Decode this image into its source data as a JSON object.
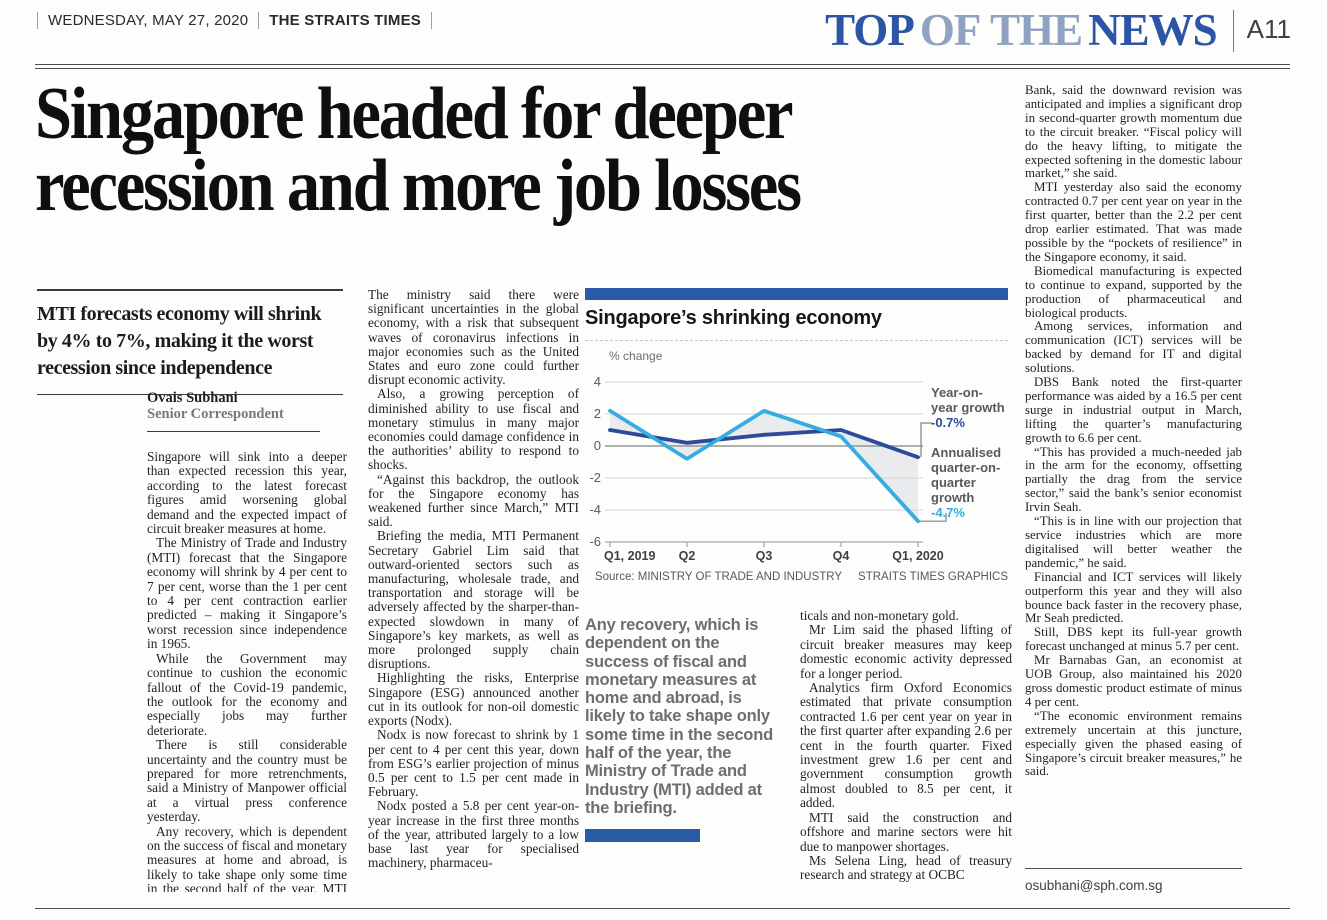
{
  "masthead": {
    "date": "WEDNESDAY, MAY 27, 2020",
    "paper": "THE STRAITS TIMES",
    "section_top": "TOP",
    "section_of_the": "OF THE",
    "section_news": "NEWS",
    "page": "A11"
  },
  "headline": "Singapore headed for deeper recession and more job losses",
  "standfirst": "MTI forecasts economy will shrink by 4% to 7%, making it the worst recession since independence",
  "byline": {
    "name": "Ovais Subhani",
    "role": "Senior Correspondent"
  },
  "article": {
    "col1": [
      "Singapore will sink into a deeper than expected recession this year, according to the latest forecast figures amid worsening global demand and the expected impact of circuit breaker measures at home.",
      "The Ministry of Trade and Industry (MTI) forecast that the Singapore economy will shrink by 4 per cent to 7 per cent, worse than the 1 per cent to 4 per cent contraction earlier predicted – making it Singapore’s worst recession since independence in 1965.",
      "While the Government may continue to cushion the economic fallout of the Covid-19 pandemic, the outlook for the economy and especially jobs may further deteriorate.",
      "There is still considerable uncertainty and the country must be prepared for more retrenchments, said a Ministry of Manpower official at a virtual press conference yesterday.",
      "Any recovery, which is dependent on the success of fiscal and monetary measures at home and abroad, is likely to take shape only some time in the second half of the year, MTI added at the briefing."
    ],
    "col2": [
      "The ministry said there were significant uncertainties in the global economy, with a risk that subsequent waves of coronavirus infections in major economies such as the United States and euro zone could further disrupt economic activity.",
      "Also, a growing perception of diminished ability to use fiscal and monetary stimulus in many major economies could damage confidence in the authorities’ ability to respond to shocks.",
      "“Against this backdrop, the outlook for the Singapore economy has weakened further since March,” MTI said.",
      "Briefing the media, MTI Permanent Secretary Gabriel Lim said that outward-oriented sectors such as manufacturing, wholesale trade, and transportation and storage will be adversely affected by the sharper-than-expected slowdown in many of Singapore’s key markets, as well as more prolonged supply chain disruptions.",
      "Highlighting the risks, Enterprise Singapore (ESG) announced another cut in its outlook for non-oil domestic exports (Nodx).",
      "Nodx is now forecast to shrink by 1 per cent to 4 per cent this year, down from ESG’s earlier projection of minus 0.5 per cent to 1.5 per cent made in February.",
      "Nodx posted a 5.8 per cent year-on-year increase in the first three months of the year, attributed largely to a low base last year for specialised machinery, pharmaceu-"
    ],
    "col4": [
      "ticals and non-monetary gold.",
      "Mr Lim said the phased lifting of circuit breaker measures may keep domestic economic activity depressed for a longer period.",
      "Analytics firm Oxford Economics estimated that private consumption contracted 1.6 per cent year on year in the first quarter after expanding 2.6 per cent in the fourth quarter. Fixed investment grew 1.6 per cent and government consumption growth almost doubled to 8.5 per cent, it added.",
      "MTI said the construction and offshore and marine sectors were hit due to manpower shortages.",
      "Ms Selena Ling, head of treasury research and strategy at OCBC"
    ],
    "col5": [
      "Bank, said the downward revision was anticipated and implies a significant drop in second-quarter growth momentum due to the circuit breaker. “Fiscal policy will do the heavy lifting, to mitigate the expected softening in the domestic labour market,” she said.",
      "MTI yesterday also said the economy contracted 0.7 per cent year on year in the first quarter, better than the 2.2 per cent drop earlier estimated. That was made possible by the “pockets of resilience” in the Singapore economy, it said.",
      "Biomedical manufacturing is expected to continue to expand, supported by the production of pharmaceutical and biological products.",
      "Among services, information and communication (ICT) services will be backed by demand for IT and digital solutions.",
      "DBS Bank noted the first-quarter performance was aided by a 16.5 per cent surge in industrial output in March, lifting the quarter’s manufacturing growth to 6.6 per cent.",
      "“This has provided a much-needed jab in the arm for the economy, offsetting partially the drag from the service sector,” said the bank’s senior economist Irvin Seah.",
      "“This is in line with our projection that service industries which are more digitalised will better weather the pandemic,” he said.",
      "Financial and ICT services will likely outperform this year and they will also bounce back faster in the recovery phase, Mr Seah predicted.",
      "Still, DBS kept its full-year growth forecast unchanged at minus 5.7 per cent.",
      "Mr Barnabas Gan, an economist at UOB Group, also maintained his 2020 gross domestic product estimate of minus 4 per cent.",
      "“The economic environment remains extremely uncertain at this juncture, especially given the phased easing of Singapore’s circuit breaker measures,” he said."
    ]
  },
  "pullquote": "Any recovery, which is dependent on the success of fiscal and monetary measures at home and abroad, is likely to take shape only some time in the second half of the year, the Ministry of Trade and Industry (MTI) added at the briefing.",
  "email": "osubhani@sph.com.sg",
  "chart_data": {
    "type": "line",
    "title": "Singapore’s shrinking economy",
    "ylabel": "% change",
    "categories": [
      "Q1, 2019",
      "Q2",
      "Q3",
      "Q4",
      "Q1, 2020"
    ],
    "series": [
      {
        "name": "Year-on-year growth",
        "values": [
          1.0,
          0.2,
          0.7,
          1.0,
          -0.7
        ],
        "value_label": "-0.7%",
        "color": "#2c4b9d"
      },
      {
        "name": "Annualised quarter-on-quarter growth",
        "values": [
          2.2,
          -0.8,
          2.2,
          0.6,
          -4.7
        ],
        "value_label": "-4.7%",
        "color": "#36ace2"
      }
    ],
    "ylim": [
      -6,
      4
    ],
    "yticks": [
      4,
      2,
      0,
      -2,
      -4,
      -6
    ],
    "grid": true,
    "legend_position": "right",
    "fill_between_color": "#eaebec",
    "source": "Source: MINISTRY OF TRADE AND INDUSTRY",
    "credit": "STRAITS TIMES GRAPHICS"
  },
  "colors": {
    "accent_blue": "#2b5aa7",
    "yoy_navy": "#2c4b9d",
    "qoq_cyan": "#36ace2",
    "label_gray": "#58595b"
  }
}
